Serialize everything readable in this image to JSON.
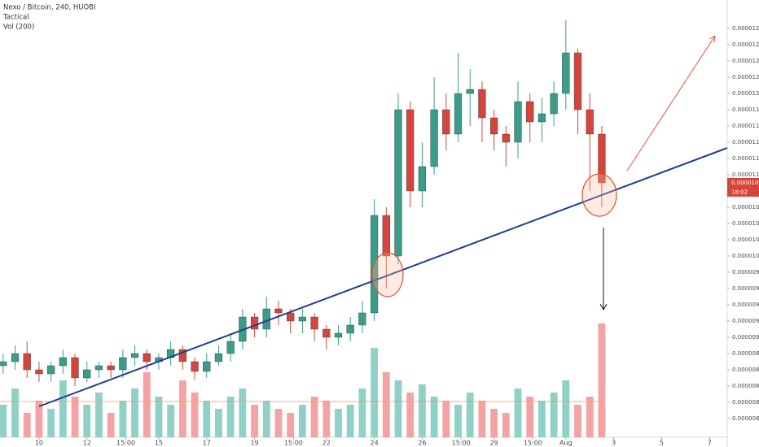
{
  "chart_data": {
    "type": "candlestick",
    "title": "Nexo / Bitcoin, 240, HUOBI",
    "indicators": [
      "Tactical",
      "Vol (200)"
    ],
    "x": [
      -1.5,
      -1,
      -0.5,
      0,
      0.5,
      1,
      1.5,
      2,
      2.5,
      3,
      3.5,
      4,
      4.5,
      5,
      5.5,
      6,
      6.5,
      7,
      7.5,
      8,
      8.5,
      9,
      9.5,
      10,
      10.5,
      11,
      11.5,
      12,
      12.5,
      13,
      13.5,
      14,
      14.5,
      15,
      15.5,
      16,
      16.5,
      17,
      17.5,
      18,
      18.5,
      19,
      19.5,
      20,
      20.5,
      21,
      21.5,
      22,
      22.5,
      23,
      23.5
    ],
    "open": [
      8.65e-06,
      8.7e-06,
      8.8e-06,
      8.6e-06,
      8.55e-06,
      8.65e-06,
      8.75e-06,
      8.5e-06,
      8.6e-06,
      8.65e-06,
      8.6e-06,
      8.75e-06,
      8.8e-06,
      8.7e-06,
      8.75e-06,
      8.85e-06,
      8.7e-06,
      8.58e-06,
      8.7e-06,
      8.8e-06,
      8.95e-06,
      9.25e-06,
      9.1e-06,
      9.35e-06,
      9.3e-06,
      9.2e-06,
      9.25e-06,
      9.1e-06,
      9e-06,
      9.05e-06,
      9.15e-06,
      9.3e-06,
      1.05e-05,
      1e-05,
      1.18e-05,
      1.08e-05,
      1.11e-05,
      1.18e-05,
      1.15e-05,
      1.2e-05,
      1.205e-05,
      1.17e-05,
      1.15e-05,
      1.14e-05,
      1.19e-05,
      1.165e-05,
      1.175e-05,
      1.2e-05,
      1.25e-05,
      1.18e-05,
      1.15e-05
    ],
    "high": [
      8.8e-06,
      8.9e-06,
      8.95e-06,
      8.7e-06,
      8.7e-06,
      8.85e-06,
      8.8e-06,
      8.7e-06,
      8.7e-06,
      8.7e-06,
      8.85e-06,
      8.9e-06,
      8.85e-06,
      8.8e-06,
      8.95e-06,
      8.9e-06,
      8.75e-06,
      8.8e-06,
      8.9e-06,
      9.05e-06,
      9.35e-06,
      9.3e-06,
      9.5e-06,
      9.45e-06,
      9.35e-06,
      9.35e-06,
      9.3e-06,
      9.15e-06,
      9.15e-06,
      9.25e-06,
      9.45e-06,
      1.07e-05,
      1.06e-05,
      1.2e-05,
      1.19e-05,
      1.14e-05,
      1.22e-05,
      1.2e-05,
      1.25e-05,
      1.23e-05,
      1.215e-05,
      1.18e-05,
      1.16e-05,
      1.215e-05,
      1.2e-05,
      1.195e-05,
      1.215e-05,
      1.29e-05,
      1.255e-05,
      1.2e-05,
      1.16e-05
    ],
    "low": [
      8.55e-06,
      8.6e-06,
      8.5e-06,
      8.45e-06,
      8.45e-06,
      8.55e-06,
      8.4e-06,
      8.45e-06,
      8.5e-06,
      8.5e-06,
      8.5e-06,
      8.65e-06,
      8.6e-06,
      8.6e-06,
      8.65e-06,
      8.6e-06,
      8.48e-06,
      8.5e-06,
      8.65e-06,
      8.7e-06,
      8.85e-06,
      9e-06,
      9e-06,
      9.15e-06,
      9.05e-06,
      9.05e-06,
      8.95e-06,
      8.85e-06,
      8.9e-06,
      8.95e-06,
      9.05e-06,
      9.2e-06,
      9.6e-06,
      9.9e-06,
      1.06e-05,
      1.06e-05,
      1.1e-05,
      1.13e-05,
      1.14e-05,
      1.16e-05,
      1.14e-05,
      1.13e-05,
      1.11e-05,
      1.12e-05,
      1.14e-05,
      1.14e-05,
      1.16e-05,
      1.18e-05,
      1.15e-05,
      1.08e-05,
      1.06e-05
    ],
    "close": [
      8.7e-06,
      8.8e-06,
      8.6e-06,
      8.55e-06,
      8.65e-06,
      8.75e-06,
      8.5e-06,
      8.6e-06,
      8.65e-06,
      8.6e-06,
      8.75e-06,
      8.8e-06,
      8.7e-06,
      8.75e-06,
      8.85e-06,
      8.7e-06,
      8.58e-06,
      8.7e-06,
      8.8e-06,
      8.95e-06,
      9.25e-06,
      9.1e-06,
      9.35e-06,
      9.3e-06,
      9.2e-06,
      9.25e-06,
      9.1e-06,
      9e-06,
      9.05e-06,
      9.15e-06,
      9.3e-06,
      1.05e-05,
      1e-05,
      1.18e-05,
      1.08e-05,
      1.11e-05,
      1.18e-05,
      1.15e-05,
      1.2e-05,
      1.205e-05,
      1.17e-05,
      1.15e-05,
      1.14e-05,
      1.19e-05,
      1.165e-05,
      1.175e-05,
      1.2e-05,
      1.25e-05,
      1.18e-05,
      1.15e-05,
      1.09e-05
    ],
    "volume": [
      40,
      60,
      30,
      45,
      35,
      70,
      50,
      40,
      55,
      30,
      45,
      60,
      80,
      50,
      40,
      70,
      55,
      45,
      35,
      50,
      60,
      40,
      45,
      35,
      30,
      40,
      50,
      45,
      35,
      40,
      60,
      110,
      80,
      70,
      55,
      65,
      50,
      45,
      40,
      55,
      45,
      35,
      30,
      60,
      50,
      45,
      55,
      70,
      40,
      50,
      140
    ],
    "up_color": "#3a9d8a",
    "down_color": "#d4463c",
    "volume_up_color": "#8fd1c6",
    "volume_down_color": "#f3a3a3",
    "xlim": [
      -1.63,
      28.74
    ],
    "xticks": [
      {
        "value": 0,
        "label": "10"
      },
      {
        "value": 2,
        "label": "12"
      },
      {
        "value": 3.625,
        "label": "15:00"
      },
      {
        "value": 5,
        "label": "15"
      },
      {
        "value": 7,
        "label": "17"
      },
      {
        "value": 9,
        "label": "19"
      },
      {
        "value": 10.625,
        "label": "15:00"
      },
      {
        "value": 12,
        "label": "22"
      },
      {
        "value": 14,
        "label": "24"
      },
      {
        "value": 16,
        "label": "26"
      },
      {
        "value": 17.625,
        "label": "15:00"
      },
      {
        "value": 19,
        "label": "29"
      },
      {
        "value": 20.625,
        "label": "15:00"
      },
      {
        "value": 22,
        "label": "Aug"
      },
      {
        "value": 24,
        "label": "3"
      },
      {
        "value": 26,
        "label": "5"
      },
      {
        "value": 28,
        "label": "7"
      }
    ],
    "ylim": [
      7.77e-06,
      1.315e-05
    ],
    "yticks": [
      {
        "value": 8e-06,
        "label": "0.00000800"
      },
      {
        "value": 8.2e-06,
        "label": "0.00000820"
      },
      {
        "value": 8.4e-06,
        "label": "0.00000840"
      },
      {
        "value": 8.6e-06,
        "label": "0.00000860"
      },
      {
        "value": 8.8e-06,
        "label": "0.00000880"
      },
      {
        "value": 9e-06,
        "label": "0.00000900"
      },
      {
        "value": 9.2e-06,
        "label": "0.00000920"
      },
      {
        "value": 9.4e-06,
        "label": "0.00000940"
      },
      {
        "value": 9.6e-06,
        "label": "0.00000960"
      },
      {
        "value": 9.8e-06,
        "label": "0.00000980"
      },
      {
        "value": 1e-05,
        "label": "0.00001000"
      },
      {
        "value": 1.02e-05,
        "label": "0.00001020"
      },
      {
        "value": 1.04e-05,
        "label": "0.00001040"
      },
      {
        "value": 1.06e-05,
        "label": "0.00001060"
      },
      {
        "value": 1.08e-05,
        "label": "0.00001080"
      },
      {
        "value": 1.1e-05,
        "label": "0.00001100"
      },
      {
        "value": 1.12e-05,
        "label": "0.00001120"
      },
      {
        "value": 1.14e-05,
        "label": "0.00001140"
      },
      {
        "value": 1.16e-05,
        "label": "0.00001160"
      },
      {
        "value": 1.18e-05,
        "label": "0.00001180"
      },
      {
        "value": 1.2e-05,
        "label": "0.00001200"
      },
      {
        "value": 1.22e-05,
        "label": "0.00001220"
      },
      {
        "value": 1.24e-05,
        "label": "0.00001240"
      },
      {
        "value": 1.26e-05,
        "label": "0.00001260"
      },
      {
        "value": 1.28e-05,
        "label": "0.00001280"
      }
    ],
    "last_price": {
      "value": 1.09e-05,
      "label": "0.00001090"
    },
    "countdown": "18:02",
    "grid": false
  }
}
